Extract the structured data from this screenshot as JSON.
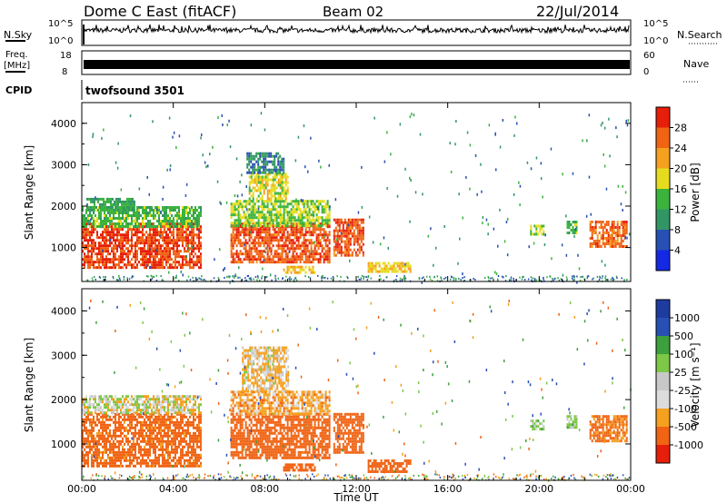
{
  "header": {
    "title": "Dome C East (fitACF)",
    "beam": "Beam 02",
    "date": "22/Jul/2014"
  },
  "top_panels": {
    "nsky_label": "N.Sky",
    "nsky_ticks": [
      "10^5",
      "10^0"
    ],
    "nsearch_label": "N.Search",
    "nsearch_ticks": [
      "10^5",
      "10^0"
    ],
    "freq_label_line1": "Freq.",
    "freq_label_line2": "[MHz]",
    "freq_ticks": [
      "18",
      "8"
    ],
    "nave_label": "Nave",
    "nave_ticks": [
      "60",
      "0"
    ],
    "cpid_label": "CPID",
    "cpid_value": "twofsound 3501"
  },
  "colors": {
    "power": [
      "#1428e6",
      "#2850b4",
      "#329664",
      "#3cb43c",
      "#e6dc1e",
      "#f5a01e",
      "#f06414",
      "#e61e0a"
    ],
    "velocity": [
      "#e61e0a",
      "#f06414",
      "#f5a01e",
      "#dcdcdc",
      "#c8c8c8",
      "#7dc846",
      "#3ca03c",
      "#2850b4",
      "#1e3ca0"
    ]
  },
  "chart_data": [
    {
      "type": "heatmap",
      "name": "power",
      "ylabel": "Slant Range [km]",
      "ylim": [
        180,
        4500
      ],
      "yticks": [
        "1000",
        "2000",
        "3000",
        "4000"
      ],
      "xlim": [
        "00:00",
        "24:00"
      ],
      "colorbar_label": "Power [dB]",
      "colorbar_ticks": [
        "4",
        "8",
        "12",
        "16",
        "20",
        "24",
        "28"
      ],
      "colorbar_range": [
        0,
        32
      ],
      "regions": [
        {
          "t": [
            0.0,
            5.2
          ],
          "r": [
            500,
            1600
          ],
          "v": 28
        },
        {
          "t": [
            0.0,
            5.2
          ],
          "r": [
            1500,
            2000
          ],
          "v": 14
        },
        {
          "t": [
            0.2,
            2.3
          ],
          "r": [
            1900,
            2200
          ],
          "v": 12
        },
        {
          "t": [
            6.5,
            10.8
          ],
          "r": [
            650,
            1600
          ],
          "v": 27
        },
        {
          "t": [
            6.5,
            10.8
          ],
          "r": [
            1550,
            2150
          ],
          "v": 16
        },
        {
          "t": [
            7.3,
            9.0
          ],
          "r": [
            2200,
            2800
          ],
          "v": 18
        },
        {
          "t": [
            7.2,
            8.8
          ],
          "r": [
            2800,
            3300
          ],
          "v": 9
        },
        {
          "t": [
            11.0,
            12.3
          ],
          "r": [
            800,
            1700
          ],
          "v": 27
        },
        {
          "t": [
            8.8,
            10.2
          ],
          "r": [
            380,
            560
          ],
          "v": 20
        },
        {
          "t": [
            12.5,
            14.4
          ],
          "r": [
            400,
            650
          ],
          "v": 20
        },
        {
          "t": [
            19.6,
            20.2
          ],
          "r": [
            1350,
            1550
          ],
          "v": 16
        },
        {
          "t": [
            21.2,
            21.6
          ],
          "r": [
            1350,
            1650
          ],
          "v": 14
        },
        {
          "t": [
            22.2,
            23.8
          ],
          "r": [
            1050,
            1650
          ],
          "v": 26
        }
      ]
    },
    {
      "type": "heatmap",
      "name": "velocity",
      "ylabel": "Slant Range [km]",
      "ylim": [
        180,
        4500
      ],
      "yticks": [
        "1000",
        "2000",
        "3000",
        "4000"
      ],
      "xlabel": "Time UT",
      "xlim": [
        "00:00",
        "24:00"
      ],
      "xticks": [
        "00:00",
        "04:00",
        "08:00",
        "12:00",
        "16:00",
        "20:00",
        "00:00"
      ],
      "colorbar_label": "Velocity [m s⁻¹]",
      "colorbar_ticks": [
        "1000",
        "500",
        "100",
        "25",
        "-25",
        "-100",
        "-500",
        "-1000"
      ],
      "regions": [
        {
          "t": [
            0.0,
            5.2
          ],
          "r": [
            500,
            1700
          ],
          "v": -150
        },
        {
          "t": [
            0.0,
            5.2
          ],
          "r": [
            1700,
            2100
          ],
          "v": 0
        },
        {
          "t": [
            6.5,
            10.8
          ],
          "r": [
            700,
            1700
          ],
          "v": -180
        },
        {
          "t": [
            6.5,
            10.8
          ],
          "r": [
            1700,
            2200
          ],
          "v": -60
        },
        {
          "t": [
            7.0,
            9.0
          ],
          "r": [
            2200,
            3200
          ],
          "v": -30
        },
        {
          "t": [
            11.0,
            12.3
          ],
          "r": [
            800,
            1700
          ],
          "v": -160
        },
        {
          "t": [
            8.8,
            10.2
          ],
          "r": [
            380,
            560
          ],
          "v": -160
        },
        {
          "t": [
            12.5,
            14.4
          ],
          "r": [
            400,
            650
          ],
          "v": -160
        },
        {
          "t": [
            19.6,
            20.2
          ],
          "r": [
            1350,
            1550
          ],
          "v": 50
        },
        {
          "t": [
            21.2,
            21.6
          ],
          "r": [
            1350,
            1650
          ],
          "v": 50
        },
        {
          "t": [
            22.2,
            23.8
          ],
          "r": [
            1050,
            1650
          ],
          "v": -120
        }
      ]
    }
  ]
}
